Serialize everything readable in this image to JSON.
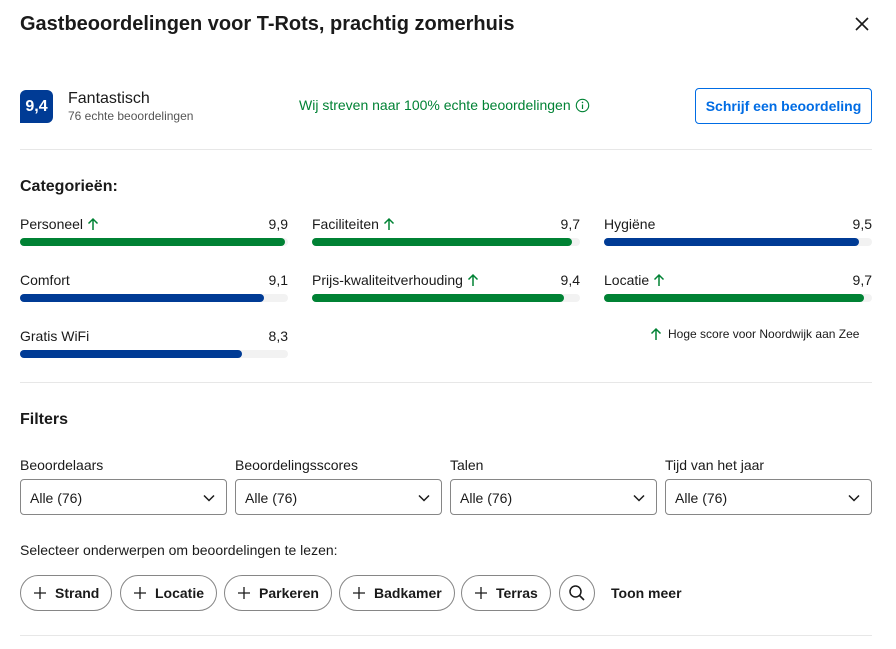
{
  "title": "Gastbeoordelingen voor T-Rots, prachtig zomerhuis",
  "summary": {
    "score": "9,4",
    "word": "Fantastisch",
    "count": "76 echte beoordelingen",
    "genuine": "Wij streven naar 100% echte beoordelingen",
    "write_button": "Schrijf een beoordeling"
  },
  "categories": {
    "heading": "Categorieën:",
    "items": [
      {
        "name": "Personeel",
        "value": "9,9",
        "score": 9.9,
        "high": true
      },
      {
        "name": "Faciliteiten",
        "value": "9,7",
        "score": 9.7,
        "high": true
      },
      {
        "name": "Hygiëne",
        "value": "9,5",
        "score": 9.5,
        "high": false
      },
      {
        "name": "Comfort",
        "value": "9,1",
        "score": 9.1,
        "high": false
      },
      {
        "name": "Prijs-kwaliteitverhouding",
        "value": "9,4",
        "score": 9.4,
        "high": true
      },
      {
        "name": "Locatie",
        "value": "9,7",
        "score": 9.7,
        "high": true
      },
      {
        "name": "Gratis WiFi",
        "value": "8,3",
        "score": 8.3,
        "high": false
      }
    ],
    "high_note": "Hoge score voor Noordwijk aan Zee"
  },
  "filters": {
    "heading": "Filters",
    "items": [
      {
        "label": "Beoordelaars",
        "value": "Alle (76)"
      },
      {
        "label": "Beoordelingsscores",
        "value": "Alle (76)"
      },
      {
        "label": "Talen",
        "value": "Alle (76)"
      },
      {
        "label": "Tijd van het jaar",
        "value": "Alle (76)"
      }
    ]
  },
  "topics": {
    "hint": "Selecteer onderwerpen om beoordelingen te lezen:",
    "chips": [
      "Strand",
      "Locatie",
      "Parkeren",
      "Badkamer",
      "Terras"
    ],
    "show_more": "Toon meer"
  },
  "colors": {
    "brand_blue": "#003b95",
    "link_blue": "#006ce4",
    "green": "#008234"
  }
}
